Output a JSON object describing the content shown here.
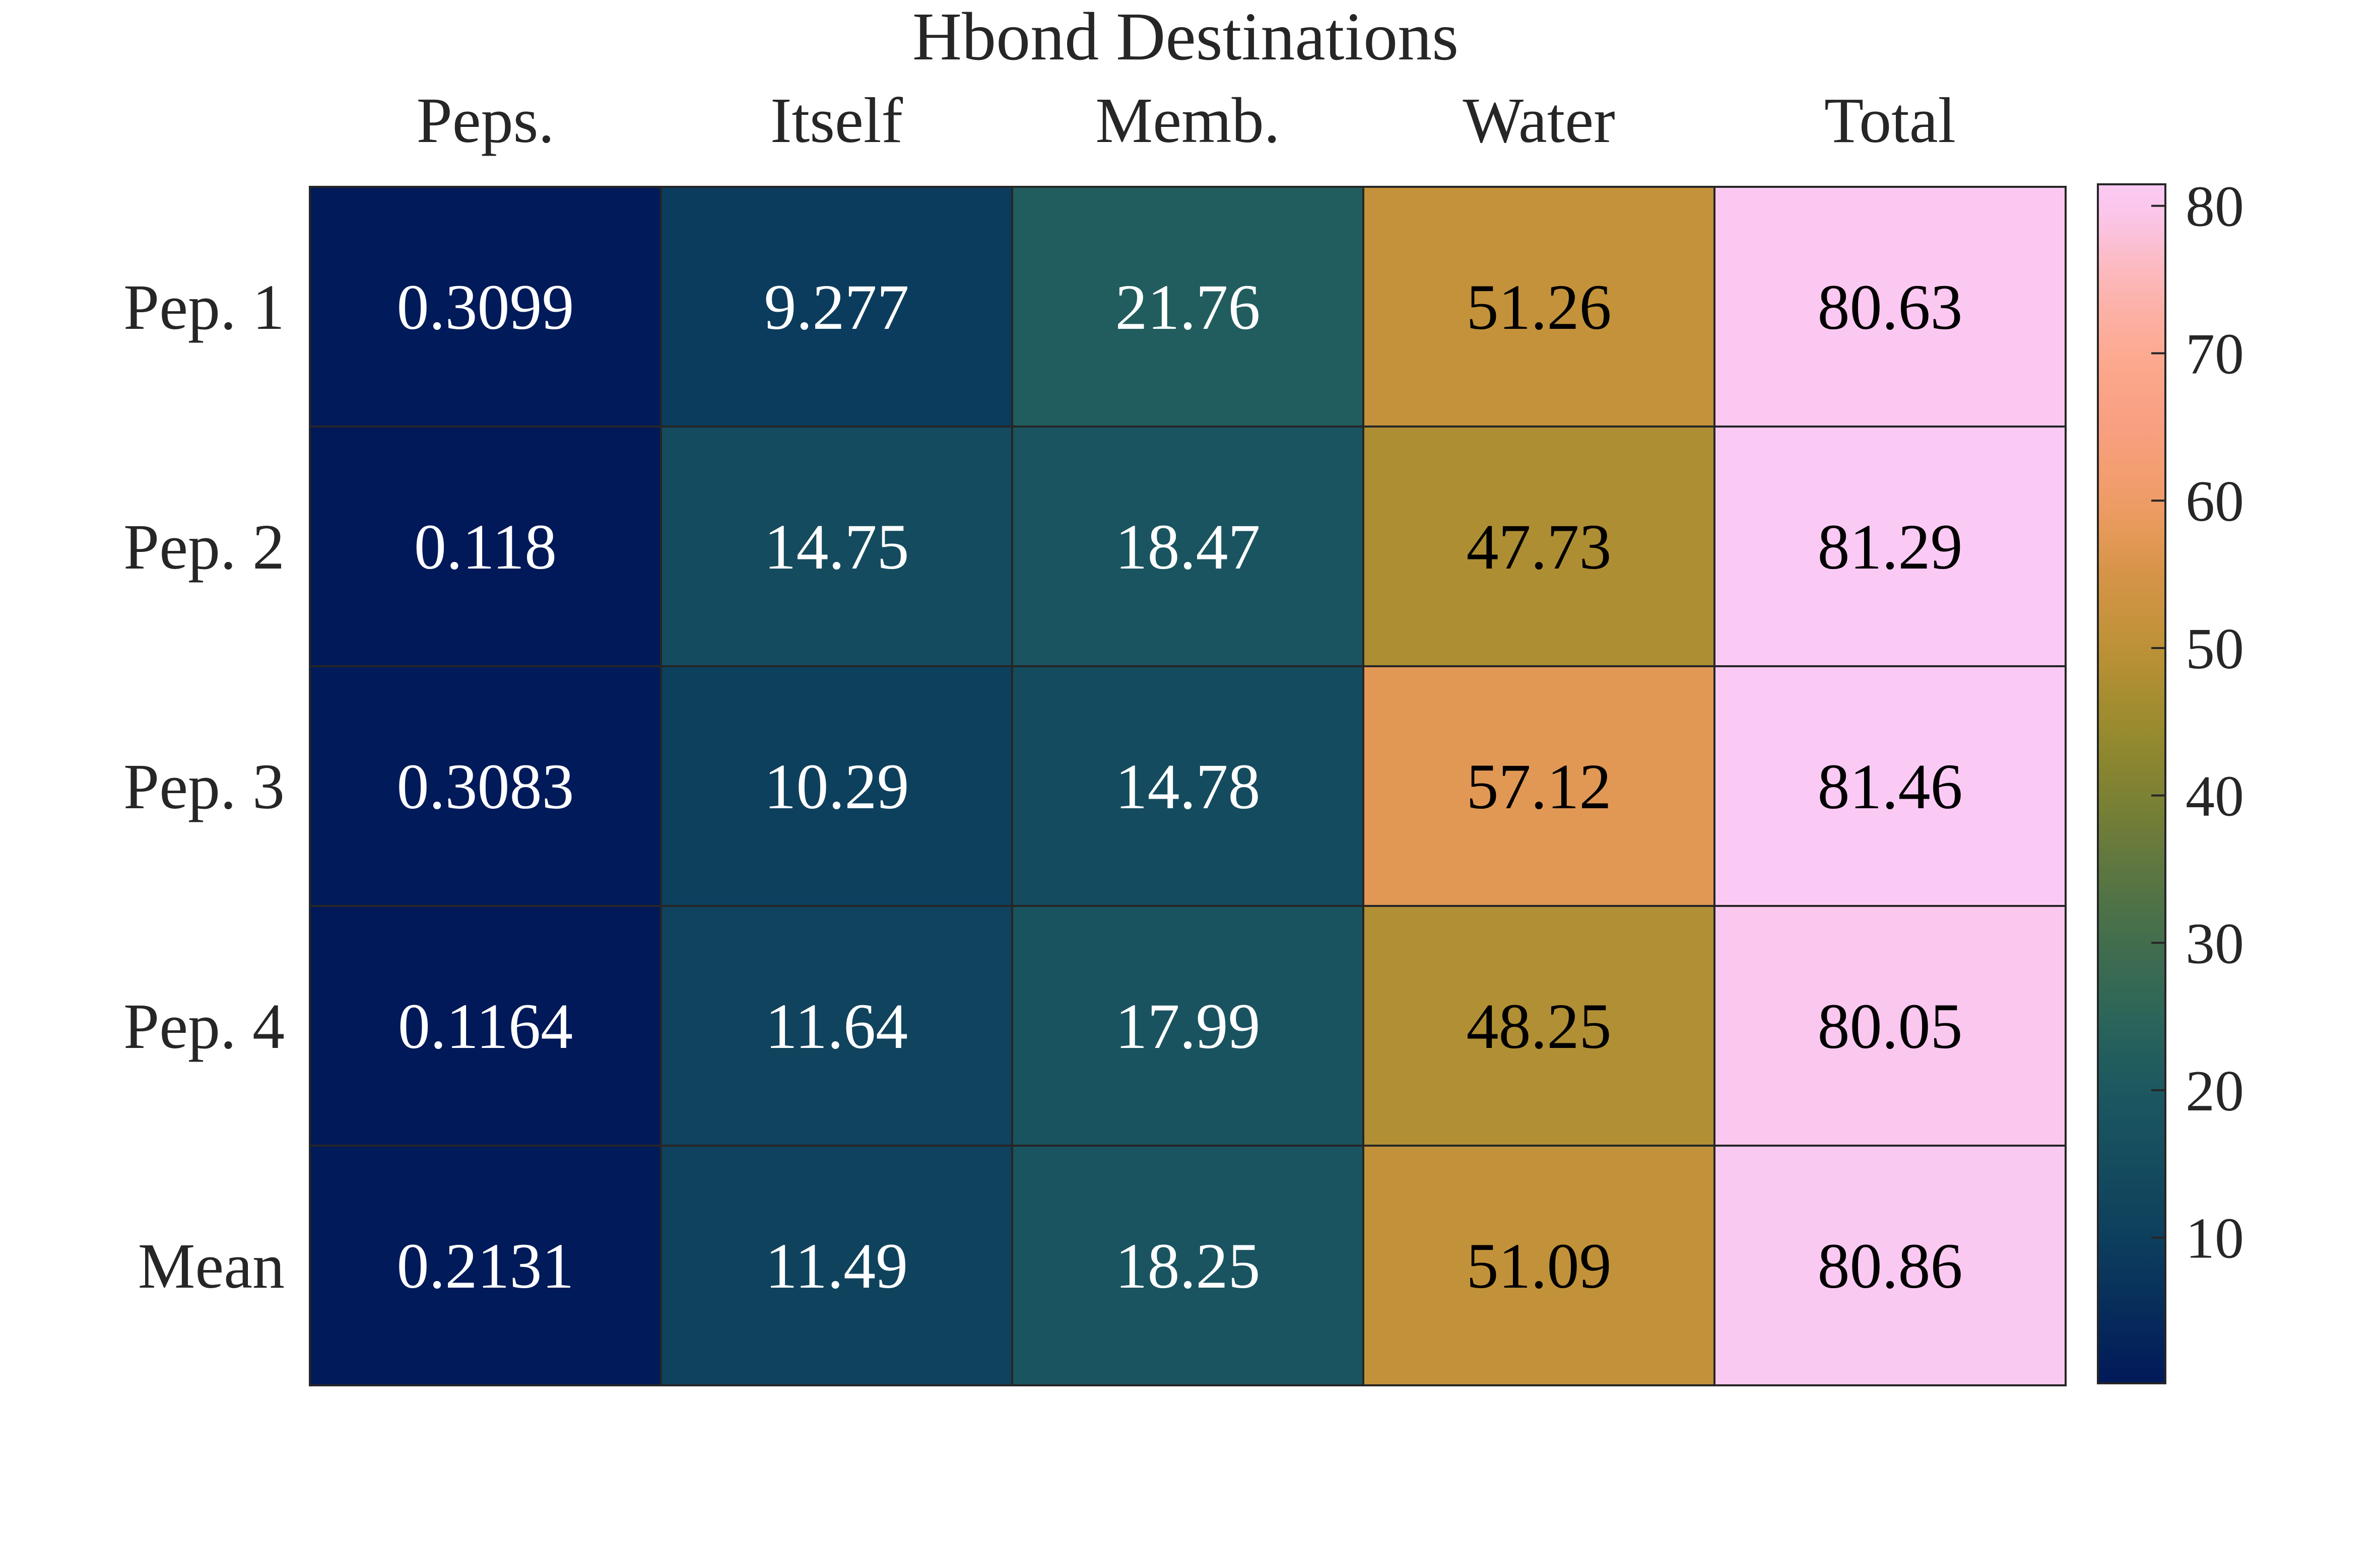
{
  "chart_data": {
    "type": "heatmap",
    "title": "Hbond Destinations",
    "columns": [
      "Peps.",
      "Itself",
      "Memb.",
      "Water",
      "Total"
    ],
    "rows": [
      "Pep. 1",
      "Pep. 2",
      "Pep. 3",
      "Pep. 4",
      "Mean"
    ],
    "cell_labels": [
      [
        "0.3099",
        "9.277",
        "21.76",
        "51.26",
        "80.63"
      ],
      [
        "0.118",
        "14.75",
        "18.47",
        "47.73",
        "81.29"
      ],
      [
        "0.3083",
        "10.29",
        "14.78",
        "57.12",
        "81.46"
      ],
      [
        "0.1164",
        "11.64",
        "17.99",
        "48.25",
        "80.05"
      ],
      [
        "0.2131",
        "11.49",
        "18.25",
        "51.09",
        "80.86"
      ]
    ],
    "values": [
      [
        0.3099,
        9.277,
        21.76,
        51.26,
        80.63
      ],
      [
        0.118,
        14.75,
        18.47,
        47.73,
        81.29
      ],
      [
        0.3083,
        10.29,
        14.78,
        57.12,
        81.46
      ],
      [
        0.1164,
        11.64,
        17.99,
        48.25,
        80.05
      ],
      [
        0.2131,
        11.49,
        18.25,
        51.09,
        80.86
      ]
    ],
    "colorbar": {
      "range": [
        0.118,
        81.46
      ],
      "ticks": [
        10,
        20,
        30,
        40,
        50,
        60,
        70,
        80
      ],
      "tick_labels": [
        "10",
        "20",
        "30",
        "40",
        "50",
        "60",
        "70",
        "80"
      ],
      "colormap_stops": [
        {
          "value": 0,
          "color": "#011959"
        },
        {
          "value": 10,
          "color": "#0d3f5d"
        },
        {
          "value": 15,
          "color": "#154c5e"
        },
        {
          "value": 20,
          "color": "#1b5861"
        },
        {
          "value": 25,
          "color": "#2c6559"
        },
        {
          "value": 30,
          "color": "#426e4e"
        },
        {
          "value": 35,
          "color": "#5d7640"
        },
        {
          "value": 40,
          "color": "#7d8233"
        },
        {
          "value": 45,
          "color": "#9c8b2e"
        },
        {
          "value": 50,
          "color": "#bd9137"
        },
        {
          "value": 55,
          "color": "#d69447"
        },
        {
          "value": 60,
          "color": "#f09d67"
        },
        {
          "value": 65,
          "color": "#f99f80"
        },
        {
          "value": 70,
          "color": "#fca98f"
        },
        {
          "value": 75,
          "color": "#fcb7b8"
        },
        {
          "value": 80,
          "color": "#fac7ef"
        },
        {
          "value": 82,
          "color": "#facbf6"
        }
      ]
    },
    "text_color_dark_cells": "#ffffff",
    "text_color_light_cells": "#000000",
    "grid": true,
    "legend": "colorbar-right"
  }
}
